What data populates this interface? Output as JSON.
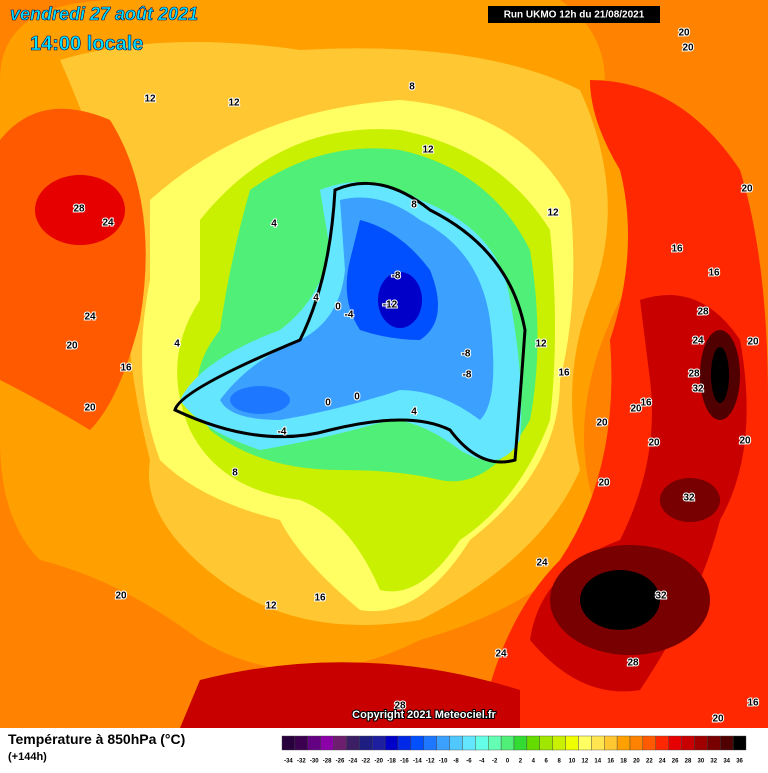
{
  "header": {
    "date": "vendredi 27 août 2021",
    "time": "14:00 locale",
    "run": "Run UKMO 12h du 21/08/2021"
  },
  "copyright": "Copyright 2021 Meteociel.fr",
  "footer": {
    "title": "Température à 850hPa (°C)",
    "lead": "(+144h)"
  },
  "scale": {
    "ticks": [
      -34,
      -32,
      -30,
      -28,
      -26,
      -24,
      -22,
      -20,
      -18,
      -16,
      -14,
      -12,
      -10,
      -8,
      -6,
      -4,
      -2,
      0,
      2,
      4,
      6,
      8,
      10,
      12,
      14,
      16,
      18,
      20,
      22,
      24,
      26,
      28,
      30,
      32,
      34,
      36
    ],
    "colors": [
      "#28003c",
      "#3c0050",
      "#640082",
      "#8c00aa",
      "#6e1e6e",
      "#3c1e64",
      "#1e1e82",
      "#1e1ea0",
      "#0000c8",
      "#0028e6",
      "#0050ff",
      "#1e78ff",
      "#3ca0ff",
      "#50c8ff",
      "#64e6ff",
      "#64ffe6",
      "#64ffb4",
      "#50f078",
      "#32dc32",
      "#64dc00",
      "#a0e600",
      "#c8f000",
      "#f0ff00",
      "#ffff64",
      "#ffe650",
      "#ffc832",
      "#ffa000",
      "#ff8200",
      "#ff5a00",
      "#ff2800",
      "#e60000",
      "#c80000",
      "#a00000",
      "#780000",
      "#500000",
      "#000000"
    ]
  },
  "contour_labels": [
    28,
    24,
    12,
    12,
    8,
    12,
    12,
    8,
    4,
    4,
    0,
    -4,
    -8,
    -12,
    -8,
    -8,
    12,
    16,
    4,
    24,
    20,
    16,
    20,
    0,
    0,
    -4,
    4,
    8,
    20,
    20,
    16,
    20,
    20,
    28,
    24,
    28,
    32,
    20,
    16,
    16,
    20,
    20,
    32,
    32,
    28,
    24,
    24,
    28,
    20,
    16,
    20,
    12,
    16,
    20,
    20
  ]
}
